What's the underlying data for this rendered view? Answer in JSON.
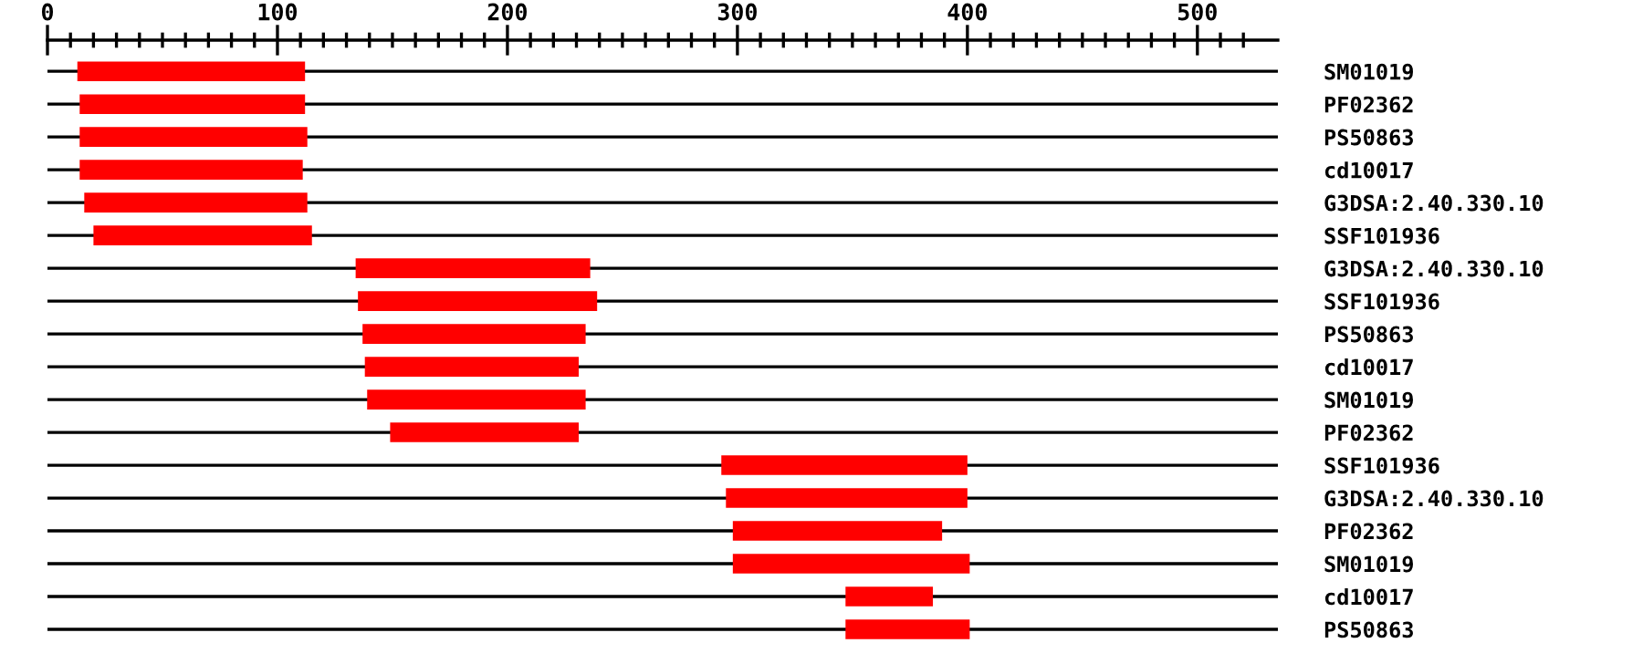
{
  "chart_data": {
    "type": "bar",
    "orientation": "horizontal",
    "grid": "y",
    "categories": [
      "SM01019",
      "PF02362",
      "PS50863",
      "cd10017",
      "G3DSA:2.40.330.10",
      "SSF101936",
      "G3DSA:2.40.330.10",
      "SSF101936",
      "PS50863",
      "cd10017",
      "SM01019",
      "PF02362",
      "SSF101936",
      "G3DSA:2.40.330.10",
      "PF02362",
      "SM01019",
      "cd10017",
      "PS50863"
    ],
    "base": [
      13,
      14,
      14,
      14,
      16,
      20,
      134,
      135,
      137,
      138,
      139,
      149,
      293,
      295,
      298,
      298,
      347,
      347
    ],
    "values": [
      99,
      98,
      99,
      97,
      97,
      95,
      102,
      104,
      97,
      93,
      95,
      82,
      107,
      105,
      91,
      103,
      38,
      54
    ],
    "color": "#ff0000",
    "xlim": [
      0,
      535
    ],
    "xticks": [
      0,
      {
        "value": 10,
        "label": null
      },
      {
        "value": 20,
        "label": null
      },
      {
        "value": 30,
        "label": null
      },
      {
        "value": 40,
        "label": null
      },
      {
        "value": 50,
        "label": null
      },
      {
        "value": 60,
        "label": null
      },
      {
        "value": 70,
        "label": null
      },
      {
        "value": 80,
        "label": null
      },
      {
        "value": 90,
        "label": null
      },
      100,
      {
        "value": 110,
        "label": null
      },
      {
        "value": 120,
        "label": null
      },
      {
        "value": 130,
        "label": null
      },
      {
        "value": 140,
        "label": null
      },
      {
        "value": 150,
        "label": null
      },
      {
        "value": 160,
        "label": null
      },
      {
        "value": 170,
        "label": null
      },
      {
        "value": 180,
        "label": null
      },
      {
        "value": 190,
        "label": null
      },
      200,
      {
        "value": 210,
        "label": null
      },
      {
        "value": 220,
        "label": null
      },
      {
        "value": 230,
        "label": null
      },
      {
        "value": 240,
        "label": null
      },
      {
        "value": 250,
        "label": null
      },
      {
        "value": 260,
        "label": null
      },
      {
        "value": 270,
        "label": null
      },
      {
        "value": 280,
        "label": null
      },
      {
        "value": 290,
        "label": null
      },
      300,
      {
        "value": 310,
        "label": null
      },
      {
        "value": 320,
        "label": null
      },
      {
        "value": 330,
        "label": null
      },
      {
        "value": 340,
        "label": null
      },
      {
        "value": 350,
        "label": null
      },
      {
        "value": 360,
        "label": null
      },
      {
        "value": 370,
        "label": null
      },
      {
        "value": 380,
        "label": null
      },
      {
        "value": 390,
        "label": null
      },
      400,
      {
        "value": 410,
        "label": null
      },
      {
        "value": 420,
        "label": null
      },
      {
        "value": 430,
        "label": null
      },
      {
        "value": 440,
        "label": null
      },
      {
        "value": 450,
        "label": null
      },
      {
        "value": 460,
        "label": null
      },
      {
        "value": 470,
        "label": null
      },
      {
        "value": 480,
        "label": null
      },
      {
        "value": 490,
        "label": null
      },
      500,
      {
        "value": 510,
        "label": null
      },
      {
        "value": 520,
        "label": null
      }
    ]
  }
}
